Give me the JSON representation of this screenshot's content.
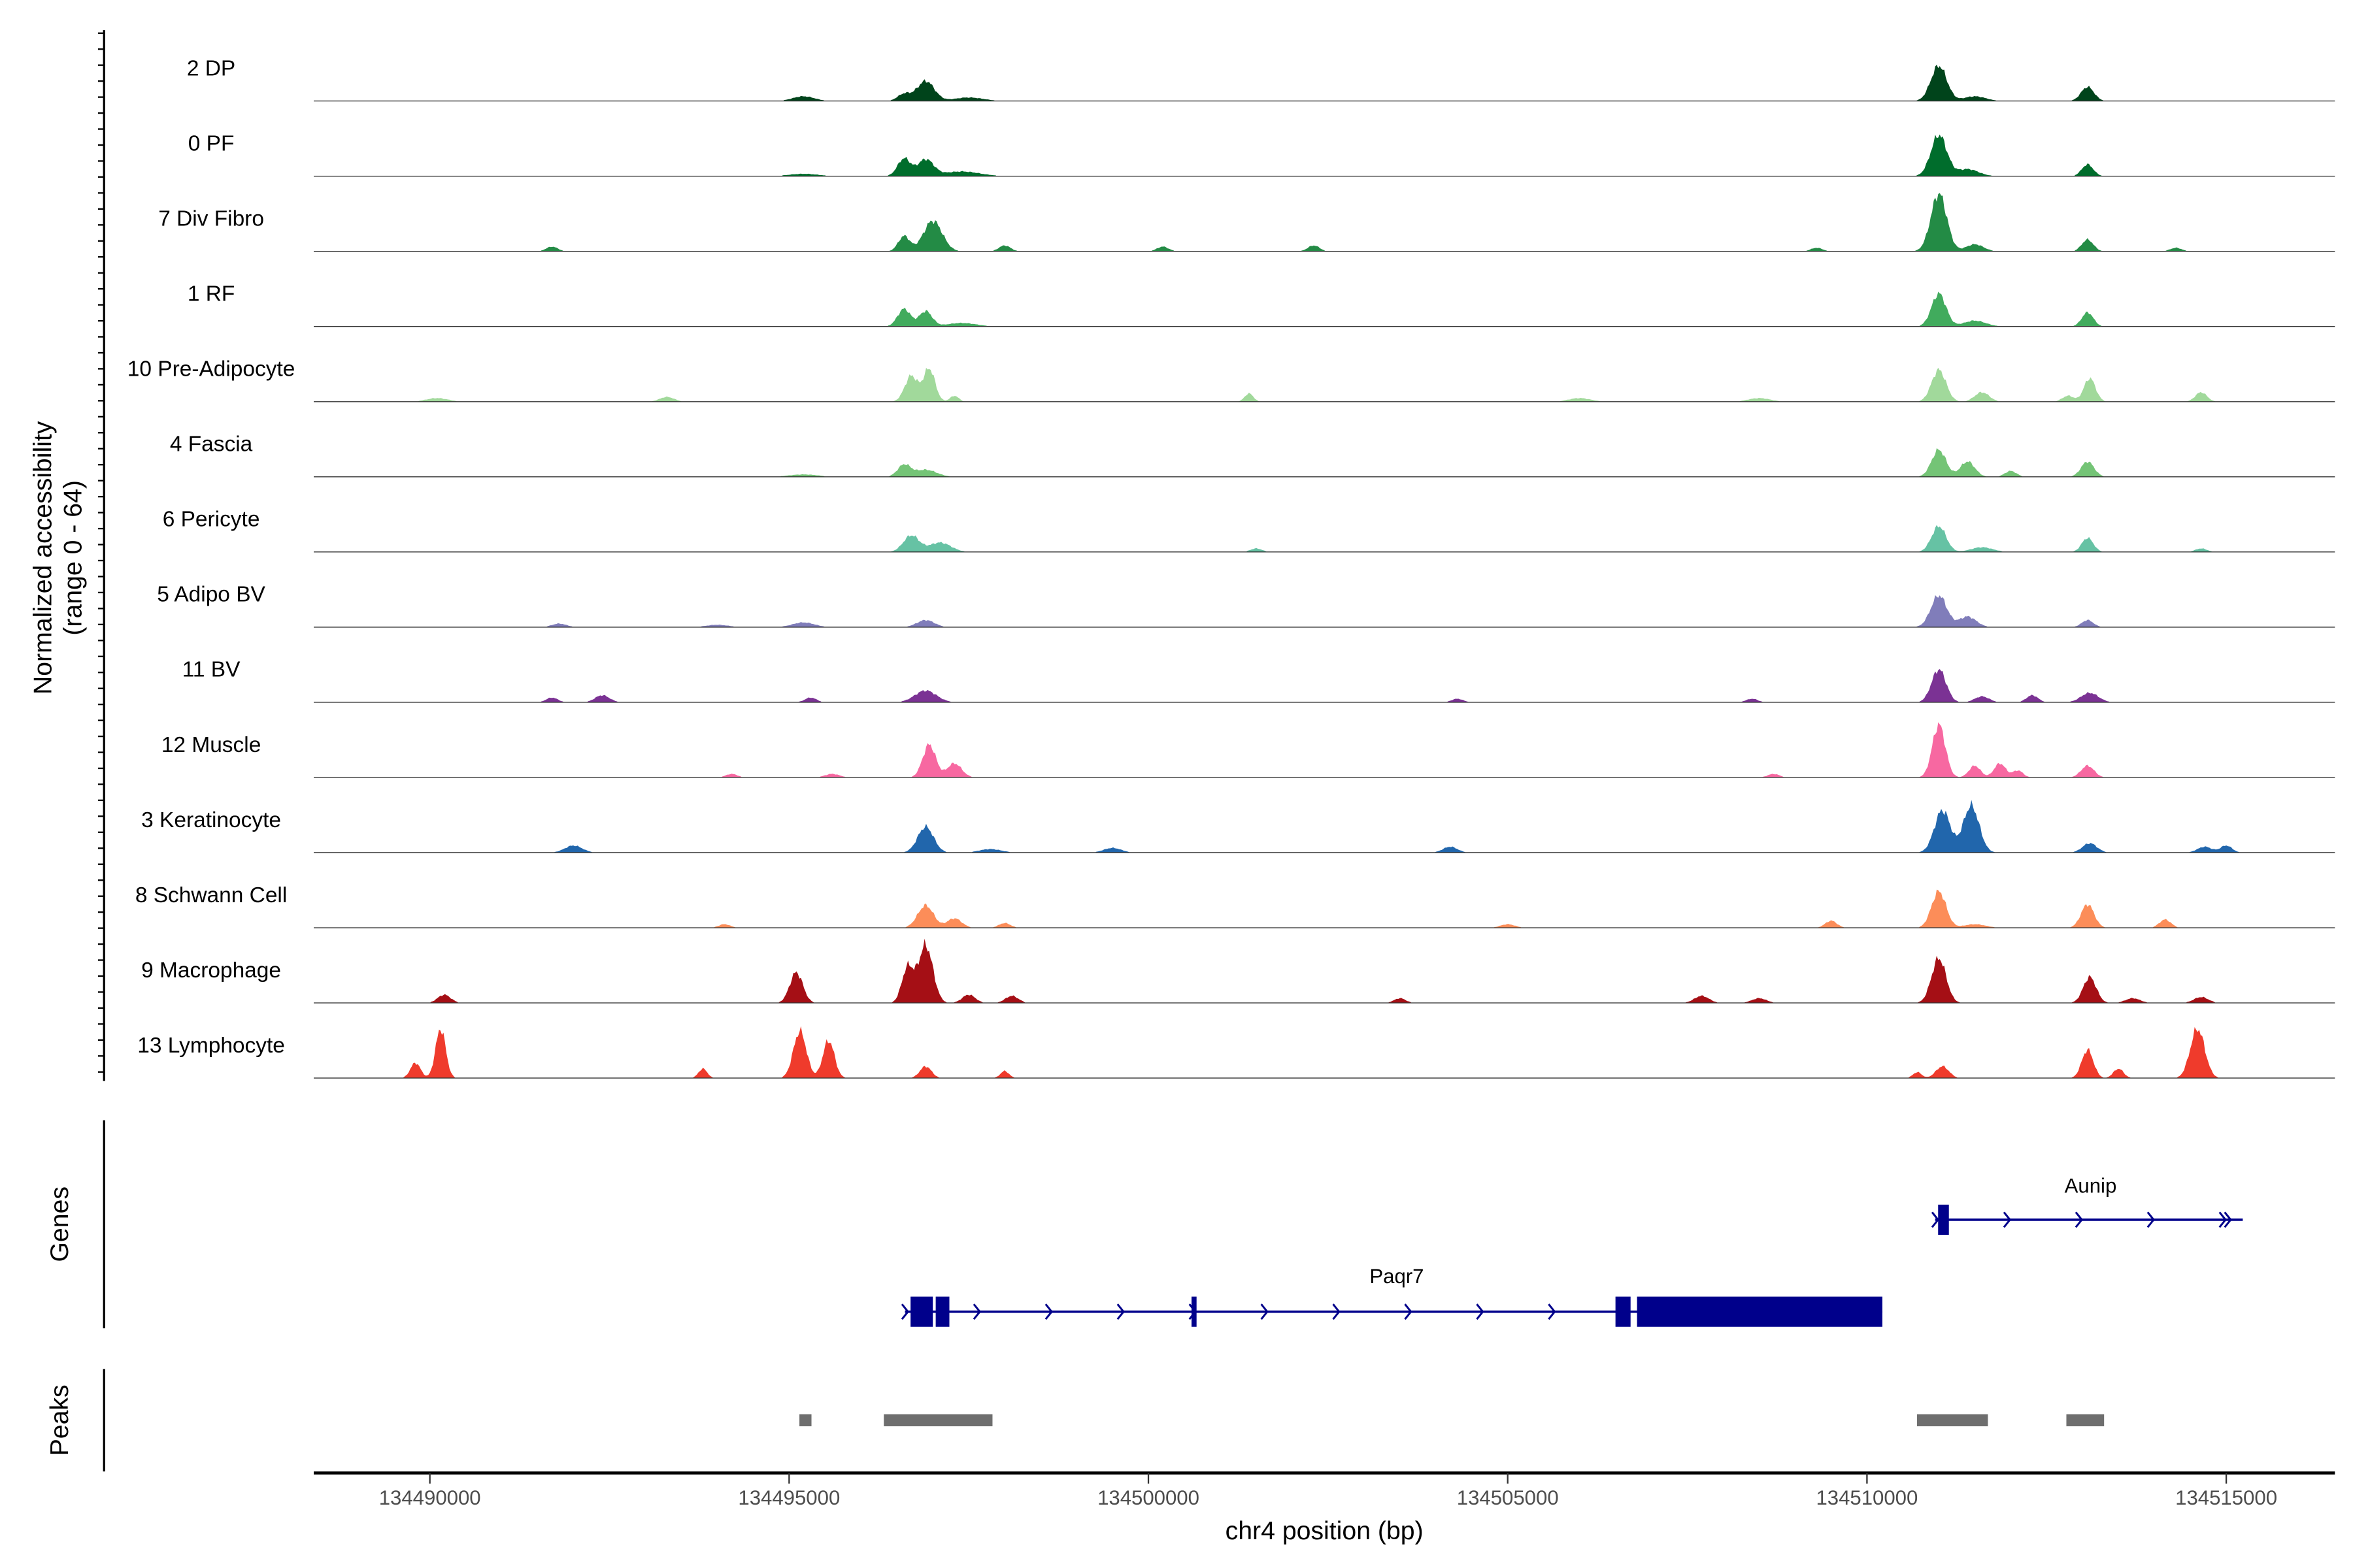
{
  "chart_data": {
    "type": "area",
    "title": "",
    "ylabel_line1": "Normalized accessibility",
    "ylabel_line2": "(range 0 - 64)",
    "xlabel": "chr4 position (bp)",
    "xlim": [
      134488384,
      134516512
    ],
    "ylim": [
      0,
      64
    ],
    "xticks": [
      134490000,
      134495000,
      134500000,
      134505000,
      134510000,
      134515000
    ],
    "xtick_labels": [
      "134490000",
      "134495000",
      "134500000",
      "134505000",
      "134510000",
      "134515000"
    ],
    "peak_format": "[center_bp, height, sigma_bp]",
    "tracks": [
      {
        "name": "2 DP",
        "color": "#00441b",
        "peaks": [
          [
            134511000,
            30,
            110
          ],
          [
            134496900,
            17,
            120
          ],
          [
            134496600,
            6,
            90
          ],
          [
            134513070,
            12,
            90
          ],
          [
            134495200,
            4,
            150
          ],
          [
            134511500,
            4,
            150
          ],
          [
            134497500,
            3,
            200
          ]
        ]
      },
      {
        "name": "0 PF",
        "color": "#006d2c",
        "peaks": [
          [
            134511000,
            35,
            110
          ],
          [
            134496600,
            15,
            90
          ],
          [
            134496900,
            14,
            110
          ],
          [
            134513070,
            10,
            80
          ],
          [
            134511400,
            6,
            150
          ],
          [
            134497400,
            4,
            250
          ],
          [
            134495200,
            2,
            200
          ]
        ]
      },
      {
        "name": "7 Div Fibro",
        "color": "#238b45",
        "peaks": [
          [
            134511000,
            49,
            110
          ],
          [
            134497000,
            26,
            130
          ],
          [
            134496600,
            13,
            80
          ],
          [
            134513070,
            10,
            80
          ],
          [
            134511500,
            6,
            120
          ],
          [
            134498000,
            5,
            80
          ],
          [
            134502300,
            5,
            80
          ],
          [
            134500200,
            4,
            80
          ],
          [
            134491700,
            4,
            80
          ],
          [
            134509300,
            3,
            80
          ],
          [
            134514300,
            3,
            80
          ]
        ]
      },
      {
        "name": "1 RF",
        "color": "#41ab5d",
        "peaks": [
          [
            134511000,
            28,
            100
          ],
          [
            134496600,
            15,
            90
          ],
          [
            134496900,
            13,
            90
          ],
          [
            134513070,
            12,
            80
          ],
          [
            134511500,
            5,
            150
          ],
          [
            134497400,
            3,
            200
          ]
        ]
      },
      {
        "name": "10 Pre-Adipocyte",
        "color": "#a1d99b",
        "peaks": [
          [
            134511000,
            27,
            100
          ],
          [
            134496700,
            22,
            90
          ],
          [
            134496950,
            28,
            80
          ],
          [
            134513100,
            20,
            80
          ],
          [
            134511600,
            8,
            100
          ],
          [
            134514650,
            8,
            80
          ],
          [
            134501400,
            7,
            60
          ],
          [
            134512800,
            5,
            80
          ],
          [
            134493300,
            4,
            100
          ],
          [
            134490100,
            3,
            150
          ],
          [
            134497300,
            5,
            60
          ],
          [
            134506000,
            3,
            150
          ],
          [
            134508500,
            3,
            150
          ]
        ]
      },
      {
        "name": "4 Fascia",
        "color": "#74c476",
        "peaks": [
          [
            134511000,
            23,
            100
          ],
          [
            134511400,
            13,
            100
          ],
          [
            134513070,
            13,
            90
          ],
          [
            134496600,
            10,
            90
          ],
          [
            134496900,
            6,
            150
          ],
          [
            134512000,
            5,
            80
          ],
          [
            134495200,
            2,
            200
          ]
        ]
      },
      {
        "name": "6 Pericyte",
        "color": "#66c2a4",
        "peaks": [
          [
            134511000,
            22,
            100
          ],
          [
            134496700,
            14,
            110
          ],
          [
            134497100,
            8,
            150
          ],
          [
            134513070,
            12,
            80
          ],
          [
            134514650,
            3,
            80
          ],
          [
            134501500,
            3,
            80
          ],
          [
            134511600,
            4,
            150
          ]
        ]
      },
      {
        "name": "5 Adipo BV",
        "color": "#807dba",
        "peaks": [
          [
            134511000,
            27,
            110
          ],
          [
            134511400,
            9,
            120
          ],
          [
            134496900,
            6,
            120
          ],
          [
            134495200,
            4,
            150
          ],
          [
            134513070,
            6,
            80
          ],
          [
            134491800,
            3,
            100
          ],
          [
            134494000,
            2,
            150
          ]
        ]
      },
      {
        "name": "11 BV",
        "color": "#7b3294",
        "peaks": [
          [
            134511000,
            28,
            100
          ],
          [
            134513100,
            8,
            120
          ],
          [
            134496900,
            10,
            150
          ],
          [
            134512300,
            6,
            80
          ],
          [
            134492400,
            6,
            100
          ],
          [
            134511600,
            5,
            100
          ],
          [
            134491700,
            4,
            80
          ],
          [
            134495300,
            4,
            80
          ],
          [
            134508400,
            3,
            80
          ],
          [
            134504300,
            3,
            80
          ]
        ]
      },
      {
        "name": "12 Muscle",
        "color": "#f768a1",
        "peaks": [
          [
            134511000,
            45,
            90
          ],
          [
            134496950,
            28,
            90
          ],
          [
            134497300,
            12,
            100
          ],
          [
            134511500,
            10,
            80
          ],
          [
            134511850,
            12,
            80
          ],
          [
            134513070,
            10,
            90
          ],
          [
            134512100,
            6,
            70
          ],
          [
            134494200,
            3,
            80
          ],
          [
            134495600,
            3,
            100
          ],
          [
            134508700,
            3,
            80
          ]
        ]
      },
      {
        "name": "3 Keratinocyte",
        "color": "#2166ac",
        "peaks": [
          [
            134511050,
            36,
            110
          ],
          [
            134511450,
            40,
            110
          ],
          [
            134496900,
            22,
            110
          ],
          [
            134492000,
            6,
            120
          ],
          [
            134504200,
            5,
            100
          ],
          [
            134513100,
            8,
            100
          ],
          [
            134514700,
            5,
            100
          ],
          [
            134515000,
            6,
            80
          ],
          [
            134499500,
            4,
            120
          ],
          [
            134497800,
            3,
            150
          ]
        ]
      },
      {
        "name": "8 Schwann Cell",
        "color": "#fc8d59",
        "peaks": [
          [
            134511000,
            31,
            100
          ],
          [
            134513070,
            20,
            90
          ],
          [
            134496900,
            19,
            110
          ],
          [
            134497300,
            8,
            100
          ],
          [
            134514150,
            7,
            80
          ],
          [
            134498000,
            4,
            80
          ],
          [
            134509500,
            6,
            80
          ],
          [
            134494100,
            3,
            80
          ],
          [
            134505000,
            3,
            100
          ],
          [
            134511500,
            3,
            150
          ]
        ]
      },
      {
        "name": "9 Macrophage",
        "color": "#a50f15",
        "peaks": [
          [
            134496900,
            49,
            100
          ],
          [
            134496650,
            30,
            80
          ],
          [
            134495100,
            26,
            90
          ],
          [
            134511000,
            38,
            100
          ],
          [
            134513100,
            22,
            90
          ],
          [
            134490200,
            7,
            90
          ],
          [
            134498100,
            6,
            90
          ],
          [
            134507700,
            6,
            100
          ],
          [
            134497500,
            7,
            90
          ],
          [
            134514650,
            5,
            100
          ],
          [
            134503500,
            4,
            80
          ],
          [
            134508500,
            4,
            100
          ],
          [
            134513700,
            4,
            100
          ]
        ]
      },
      {
        "name": "13 Lymphocyte",
        "color": "#ef3b2c",
        "peaks": [
          [
            134490150,
            42,
            70
          ],
          [
            134489800,
            13,
            70
          ],
          [
            134495150,
            40,
            90
          ],
          [
            134495550,
            32,
            80
          ],
          [
            134514600,
            42,
            100
          ],
          [
            134513070,
            24,
            80
          ],
          [
            134496900,
            10,
            80
          ],
          [
            134511050,
            10,
            90
          ],
          [
            134493800,
            8,
            60
          ],
          [
            134513500,
            8,
            70
          ],
          [
            134498000,
            6,
            60
          ],
          [
            134510700,
            5,
            60
          ]
        ]
      }
    ],
    "genes": [
      {
        "name": "Paqr7",
        "color": "#00008b",
        "start": 134496612,
        "end": 134510214,
        "exons": [
          [
            134496690,
            134497000
          ],
          [
            134497040,
            134497230
          ],
          [
            134500600,
            134500670
          ],
          [
            134506500,
            134506710
          ],
          [
            134506800,
            134510214
          ]
        ]
      },
      {
        "name": "Aunip",
        "color": "#00008b",
        "start": 134510948,
        "end": 134515230,
        "exons": [
          [
            134510990,
            134511140
          ]
        ]
      }
    ],
    "peaks_track": {
      "color": "#6e6e6e",
      "regions": [
        [
          134495143,
          134495311
        ],
        [
          134496318,
          134497830
        ],
        [
          134510696,
          134511683
        ],
        [
          134512775,
          134513300
        ]
      ]
    },
    "panel_labels": {
      "genes": "Genes",
      "peaks": "Peaks"
    }
  }
}
